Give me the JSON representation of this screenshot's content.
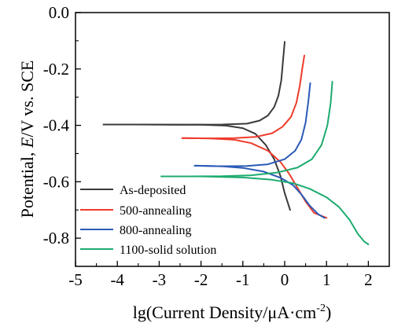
{
  "chart_data": {
    "type": "line",
    "xlabel": "lg(Current Density/μA·cm",
    "xlabel_sup": "-2",
    "xlabel_close": ")",
    "ylabel_prefix": "Potential, ",
    "ylabel_italic": "E",
    "ylabel_suffix": "/V vs. SCE",
    "xlim": [
      -5,
      2.5
    ],
    "ylim": [
      -0.9,
      0.0
    ],
    "xticks": [
      "-5",
      "-4",
      "-3",
      "-2",
      "-1",
      "0",
      "1",
      "2"
    ],
    "yticks": [
      "0.0",
      "-0.2",
      "-0.4",
      "-0.6",
      "-0.8"
    ],
    "legend_position": "bottom-left",
    "series": [
      {
        "name": "As-deposited",
        "color": "#3a3a3a",
        "anodic": [
          [
            -4.33,
            -0.397
          ],
          [
            -3.5,
            -0.397
          ],
          [
            -2.5,
            -0.398
          ],
          [
            -1.5,
            -0.397
          ],
          [
            -0.9,
            -0.394
          ],
          [
            -0.6,
            -0.383
          ],
          [
            -0.4,
            -0.365
          ],
          [
            -0.25,
            -0.335
          ],
          [
            -0.15,
            -0.295
          ],
          [
            -0.08,
            -0.24
          ],
          [
            -0.04,
            -0.17
          ],
          [
            0.0,
            -0.104
          ]
        ],
        "cathodic": [
          [
            -4.33,
            -0.397
          ],
          [
            -3.5,
            -0.397
          ],
          [
            -2.0,
            -0.398
          ],
          [
            -1.4,
            -0.401
          ],
          [
            -1.0,
            -0.41
          ],
          [
            -0.7,
            -0.43
          ],
          [
            -0.45,
            -0.47
          ],
          [
            -0.25,
            -0.52
          ],
          [
            -0.1,
            -0.58
          ],
          [
            0.0,
            -0.64
          ],
          [
            0.13,
            -0.7
          ]
        ]
      },
      {
        "name": "500-annealing",
        "color": "#ee3b2c",
        "anodic": [
          [
            -2.45,
            -0.445
          ],
          [
            -1.8,
            -0.446
          ],
          [
            -1.2,
            -0.445
          ],
          [
            -0.7,
            -0.441
          ],
          [
            -0.3,
            -0.428
          ],
          [
            -0.05,
            -0.405
          ],
          [
            0.15,
            -0.37
          ],
          [
            0.28,
            -0.32
          ],
          [
            0.36,
            -0.26
          ],
          [
            0.42,
            -0.2
          ],
          [
            0.47,
            -0.152
          ]
        ],
        "cathodic": [
          [
            -2.45,
            -0.445
          ],
          [
            -1.8,
            -0.446
          ],
          [
            -1.2,
            -0.451
          ],
          [
            -0.8,
            -0.463
          ],
          [
            -0.4,
            -0.49
          ],
          [
            -0.1,
            -0.53
          ],
          [
            0.1,
            -0.57
          ],
          [
            0.3,
            -0.62
          ],
          [
            0.5,
            -0.67
          ],
          [
            0.7,
            -0.71
          ],
          [
            1.0,
            -0.728
          ]
        ]
      },
      {
        "name": "800-annealing",
        "color": "#2a5ab6",
        "anodic": [
          [
            -2.15,
            -0.543
          ],
          [
            -1.5,
            -0.545
          ],
          [
            -0.9,
            -0.544
          ],
          [
            -0.4,
            -0.538
          ],
          [
            0.0,
            -0.52
          ],
          [
            0.25,
            -0.49
          ],
          [
            0.4,
            -0.45
          ],
          [
            0.5,
            -0.39
          ],
          [
            0.57,
            -0.31
          ],
          [
            0.61,
            -0.25
          ]
        ],
        "cathodic": [
          [
            -2.15,
            -0.543
          ],
          [
            -1.5,
            -0.545
          ],
          [
            -1.0,
            -0.551
          ],
          [
            -0.5,
            -0.564
          ],
          [
            -0.1,
            -0.586
          ],
          [
            0.2,
            -0.612
          ],
          [
            0.4,
            -0.645
          ],
          [
            0.6,
            -0.685
          ],
          [
            0.8,
            -0.715
          ],
          [
            0.95,
            -0.728
          ]
        ]
      },
      {
        "name": "1100-solid solution",
        "color": "#1dab6f",
        "anodic": [
          [
            -2.95,
            -0.581
          ],
          [
            -2.3,
            -0.581
          ],
          [
            -1.5,
            -0.58
          ],
          [
            -0.8,
            -0.577
          ],
          [
            -0.2,
            -0.568
          ],
          [
            0.3,
            -0.55
          ],
          [
            0.65,
            -0.52
          ],
          [
            0.88,
            -0.47
          ],
          [
            1.02,
            -0.4
          ],
          [
            1.1,
            -0.32
          ],
          [
            1.14,
            -0.245
          ]
        ],
        "cathodic": [
          [
            -2.95,
            -0.581
          ],
          [
            -2.0,
            -0.581
          ],
          [
            -1.0,
            -0.585
          ],
          [
            -0.3,
            -0.593
          ],
          [
            0.2,
            -0.605
          ],
          [
            0.6,
            -0.625
          ],
          [
            1.0,
            -0.655
          ],
          [
            1.3,
            -0.69
          ],
          [
            1.55,
            -0.735
          ],
          [
            1.75,
            -0.785
          ],
          [
            1.9,
            -0.812
          ],
          [
            2.0,
            -0.822
          ]
        ]
      }
    ]
  }
}
